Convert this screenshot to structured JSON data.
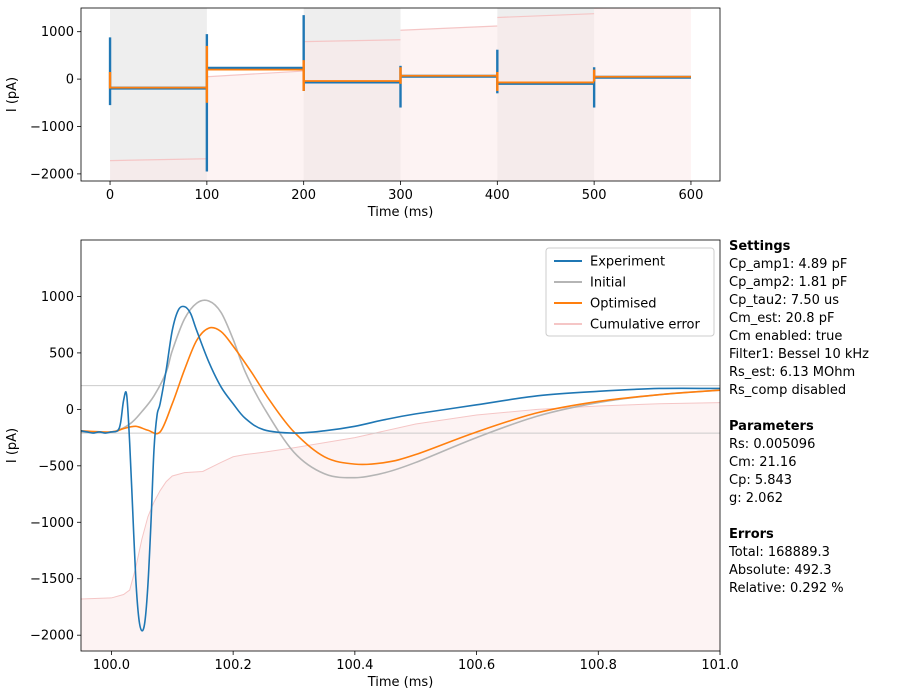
{
  "chart_data": [
    {
      "type": "line",
      "xlabel": "Time (ms)",
      "ylabel": "I (pA)",
      "xlim": [
        -30,
        630
      ],
      "ylim": [
        -2150,
        1500
      ],
      "xticks": [
        0,
        100,
        200,
        300,
        400,
        500,
        600
      ],
      "yticks": [
        -2000,
        -1000,
        0,
        1000
      ],
      "grid": false,
      "shaded_bands": [
        {
          "x0": 0,
          "x1": 100,
          "color": "#eeeeee"
        },
        {
          "x0": 200,
          "x1": 300,
          "color": "#eeeeee"
        },
        {
          "x0": 400,
          "x1": 500,
          "color": "#eeeeee"
        }
      ],
      "series": [
        {
          "name": "Experiment",
          "color": "#1f77b4",
          "levels": [
            {
              "x0": 0,
              "x1": 100,
              "y": -190
            },
            {
              "x0": 100,
              "x1": 200,
              "y": 230
            },
            {
              "x0": 200,
              "x1": 300,
              "y": -60
            },
            {
              "x0": 300,
              "x1": 400,
              "y": 60
            },
            {
              "x0": 400,
              "x1": 500,
              "y": -90
            },
            {
              "x0": 500,
              "x1": 600,
              "y": 40
            }
          ],
          "spikes": [
            {
              "x": 0,
              "ymin": -550,
              "ymax": 880
            },
            {
              "x": 100,
              "ymin": -1950,
              "ymax": 950
            },
            {
              "x": 200,
              "ymin": -250,
              "ymax": 1350
            },
            {
              "x": 300,
              "ymin": -600,
              "ymax": 280
            },
            {
              "x": 400,
              "ymin": -300,
              "ymax": 620
            },
            {
              "x": 500,
              "ymin": -600,
              "ymax": 250
            }
          ]
        },
        {
          "name": "Optimised",
          "color": "#ff7f0e",
          "levels": [
            {
              "x0": 0,
              "x1": 100,
              "y": -180
            },
            {
              "x0": 100,
              "x1": 200,
              "y": 200
            },
            {
              "x0": 200,
              "x1": 300,
              "y": -40
            },
            {
              "x0": 300,
              "x1": 400,
              "y": 70
            },
            {
              "x0": 400,
              "x1": 500,
              "y": -70
            },
            {
              "x0": 500,
              "x1": 600,
              "y": 50
            }
          ],
          "spikes": [
            {
              "x": 0,
              "ymin": -200,
              "ymax": 150
            },
            {
              "x": 100,
              "ymin": -500,
              "ymax": 700
            },
            {
              "x": 200,
              "ymin": -250,
              "ymax": 400
            },
            {
              "x": 300,
              "ymin": -100,
              "ymax": 250
            },
            {
              "x": 400,
              "ymin": -250,
              "ymax": 150
            },
            {
              "x": 500,
              "ymin": -50,
              "ymax": 200
            }
          ]
        },
        {
          "name": "Cumulative error",
          "color": "#f5c6c6",
          "steps": [
            {
              "x0": 0,
              "x1": 100,
              "ya": -1720,
              "yb": -1680
            },
            {
              "x0": 100,
              "x1": 200,
              "ya": 50,
              "yb": 170
            },
            {
              "x0": 200,
              "x1": 300,
              "ya": 790,
              "yb": 830
            },
            {
              "x0": 300,
              "x1": 400,
              "ya": 1030,
              "yb": 1120
            },
            {
              "x0": 400,
              "x1": 500,
              "ya": 1300,
              "yb": 1380
            },
            {
              "x0": 500,
              "x1": 600,
              "ya": 1500,
              "yb": 1520
            }
          ]
        }
      ]
    },
    {
      "type": "line",
      "xlabel": "Time (ms)",
      "ylabel": "I (pA)",
      "xlim": [
        99.95,
        101.0
      ],
      "ylim": [
        -2140,
        1500
      ],
      "xticks": [
        100.0,
        100.2,
        100.4,
        100.6,
        100.8,
        101.0
      ],
      "yticks": [
        -2000,
        -1500,
        -1000,
        -500,
        0,
        500,
        1000
      ],
      "grid": false,
      "hlines": [
        210,
        -210
      ],
      "legend": {
        "position": "top-right",
        "entries": [
          "Experiment",
          "Initial",
          "Optimised",
          "Cumulative error"
        ]
      },
      "series": [
        {
          "name": "Experiment",
          "color": "#1f77b4",
          "x": [
            99.95,
            99.96,
            99.97,
            99.98,
            99.99,
            100.0,
            100.01,
            100.015,
            100.02,
            100.025,
            100.03,
            100.035,
            100.04,
            100.045,
            100.05,
            100.055,
            100.06,
            100.065,
            100.07,
            100.075,
            100.08,
            100.09,
            100.1,
            100.11,
            100.12,
            100.13,
            100.14,
            100.16,
            100.18,
            100.2,
            100.22,
            100.25,
            100.3,
            100.35,
            100.4,
            100.45,
            100.5,
            100.6,
            100.7,
            100.8,
            100.9,
            101.0
          ],
          "y": [
            -190,
            -200,
            -210,
            -200,
            -210,
            -200,
            -190,
            -120,
            80,
            130,
            -300,
            -900,
            -1500,
            -1850,
            -1960,
            -1880,
            -1550,
            -1000,
            -350,
            -50,
            50,
            350,
            700,
            880,
            910,
            850,
            700,
            420,
            200,
            50,
            -80,
            -180,
            -210,
            -190,
            -150,
            -90,
            -40,
            40,
            120,
            160,
            185,
            185
          ]
        },
        {
          "name": "Initial",
          "color": "#b5b5b5",
          "x": [
            99.95,
            100.0,
            100.03,
            100.05,
            100.07,
            100.09,
            100.1,
            100.12,
            100.14,
            100.16,
            100.18,
            100.2,
            100.22,
            100.25,
            100.3,
            100.35,
            100.4,
            100.45,
            100.5,
            100.6,
            100.7,
            100.8,
            100.9,
            101.0
          ],
          "y": [
            -200,
            -200,
            -130,
            -20,
            120,
            330,
            520,
            800,
            940,
            960,
            860,
            620,
            330,
            20,
            -380,
            -570,
            -605,
            -560,
            -470,
            -250,
            -60,
            60,
            130,
            170
          ]
        },
        {
          "name": "Optimised",
          "color": "#ff7f0e",
          "x": [
            99.95,
            100.0,
            100.02,
            100.04,
            100.06,
            100.08,
            100.1,
            100.12,
            100.14,
            100.16,
            100.18,
            100.2,
            100.23,
            100.26,
            100.3,
            100.35,
            100.4,
            100.45,
            100.5,
            100.6,
            100.7,
            100.8,
            100.9,
            101.0
          ],
          "y": [
            -190,
            -200,
            -170,
            -150,
            -185,
            -200,
            50,
            350,
            610,
            720,
            690,
            560,
            330,
            80,
            -200,
            -420,
            -485,
            -470,
            -400,
            -200,
            -30,
            70,
            130,
            170
          ]
        },
        {
          "name": "Cumulative error",
          "color": "#f5c6c6",
          "x": [
            99.95,
            100.0,
            100.02,
            100.03,
            100.04,
            100.05,
            100.06,
            100.07,
            100.08,
            100.09,
            100.1,
            100.12,
            100.15,
            100.18,
            100.2,
            100.22,
            100.25,
            100.3,
            100.4,
            100.5,
            100.6,
            100.7,
            100.8,
            100.9,
            101.0
          ],
          "y": [
            -1680,
            -1670,
            -1640,
            -1600,
            -1400,
            -1150,
            -950,
            -820,
            -720,
            -640,
            -590,
            -560,
            -550,
            -470,
            -420,
            -400,
            -380,
            -340,
            -250,
            -130,
            -50,
            0,
            30,
            50,
            60
          ]
        }
      ]
    }
  ],
  "settings": {
    "heading": "Settings",
    "lines": [
      "Cp_amp1: 4.89 pF",
      "Cp_amp2: 1.81 pF",
      "Cp_tau2: 7.50 us",
      "Cm_est: 20.8 pF",
      "Cm enabled: true",
      "Filter1: Bessel 10 kHz",
      "Rs_est: 6.13 MOhm",
      "Rs_comp disabled"
    ]
  },
  "parameters": {
    "heading": "Parameters",
    "lines": [
      "Rs: 0.005096",
      "Cm: 21.16",
      "Cp: 5.843",
      "g: 2.062"
    ]
  },
  "errors": {
    "heading": "Errors",
    "lines": [
      "Total: 168889.3",
      "Absolute: 492.3",
      "Relative: 0.292 %"
    ]
  }
}
